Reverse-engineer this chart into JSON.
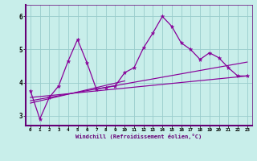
{
  "xlabel": "Windchill (Refroidissement éolien,°C)",
  "bg_color": "#c8eeea",
  "line_color": "#880099",
  "grid_color": "#99cccc",
  "spine_color": "#660077",
  "x_values": [
    0,
    1,
    2,
    3,
    4,
    5,
    6,
    7,
    8,
    9,
    10,
    11,
    12,
    13,
    14,
    15,
    16,
    17,
    18,
    19,
    20,
    21,
    22,
    23
  ],
  "series1_y": [
    3.75,
    2.9,
    3.55,
    3.9,
    4.65,
    5.3,
    4.6,
    3.8,
    3.85,
    3.9,
    4.3,
    4.45,
    5.05,
    5.5,
    6.0,
    5.7,
    5.2,
    5.0,
    4.7,
    4.9,
    4.75,
    4.45,
    4.2,
    4.2
  ],
  "trend_lines": [
    {
      "x": [
        0,
        23
      ],
      "y": [
        3.55,
        4.2
      ]
    },
    {
      "x": [
        0,
        23
      ],
      "y": [
        3.45,
        4.62
      ]
    },
    {
      "x": [
        0,
        10
      ],
      "y": [
        3.38,
        4.05
      ]
    }
  ],
  "ylim": [
    2.7,
    6.35
  ],
  "xlim": [
    -0.5,
    23.5
  ],
  "yticks": [
    3,
    4,
    5,
    6
  ],
  "xticks": [
    0,
    1,
    2,
    3,
    4,
    5,
    6,
    7,
    8,
    9,
    10,
    11,
    12,
    13,
    14,
    15,
    16,
    17,
    18,
    19,
    20,
    21,
    22,
    23
  ]
}
